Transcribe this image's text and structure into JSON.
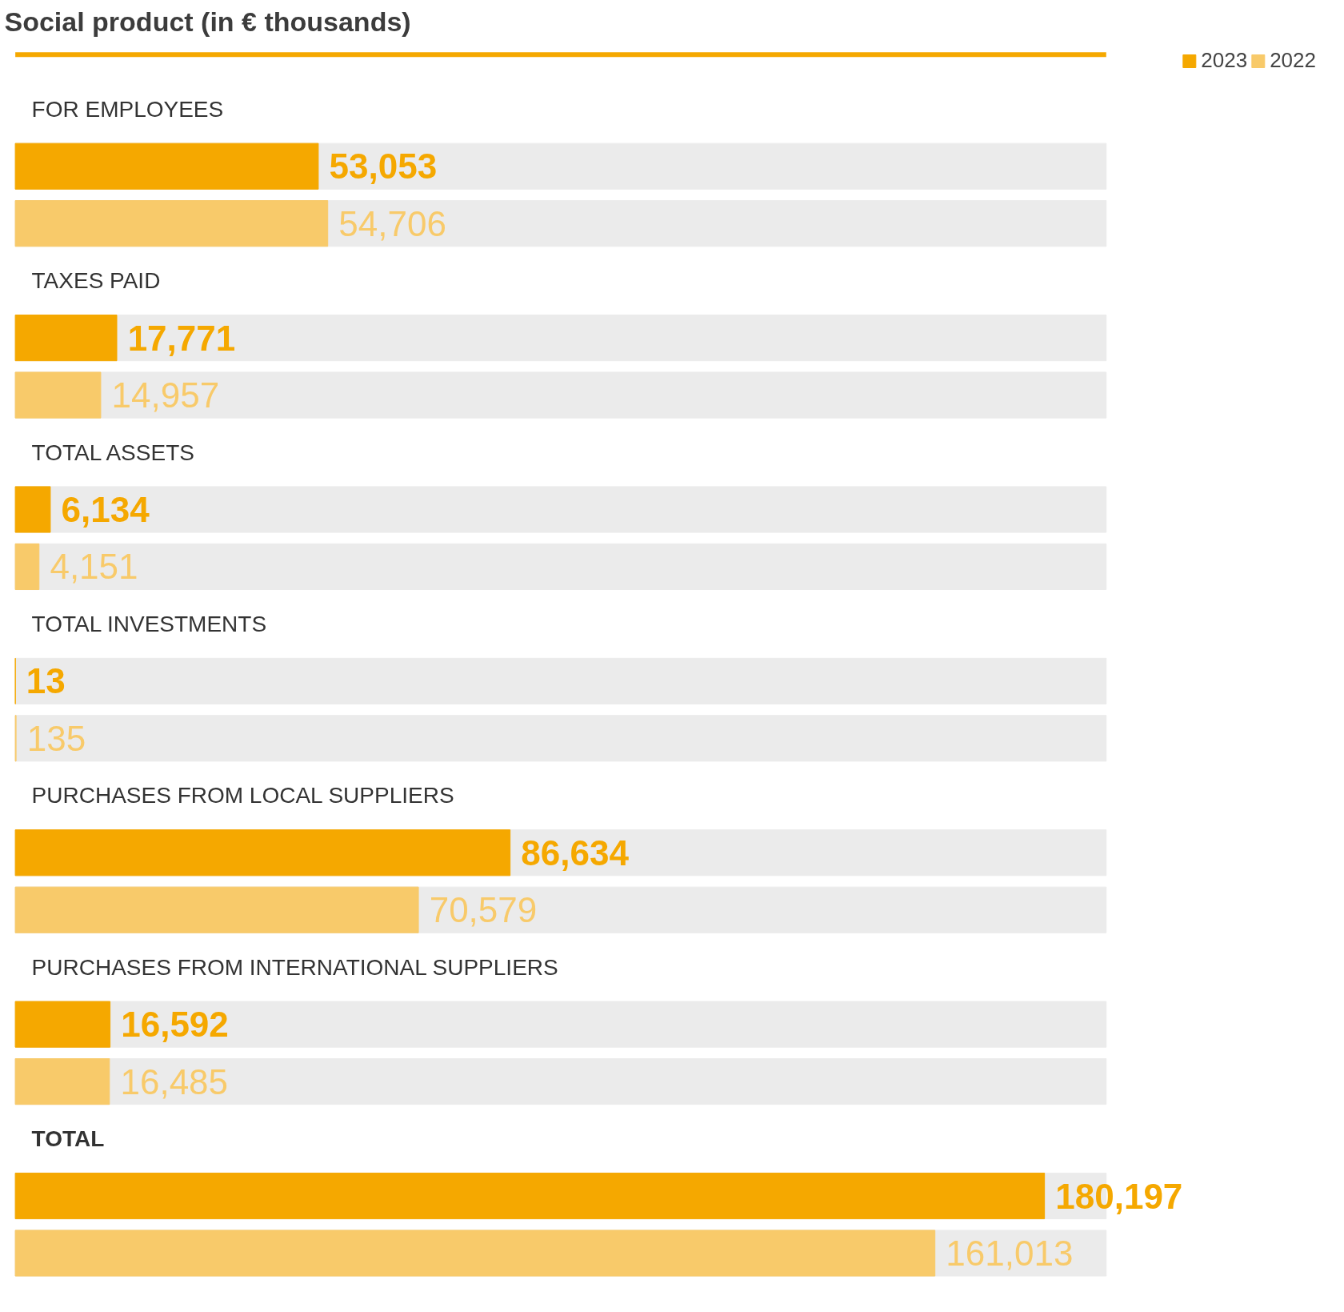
{
  "chart_data": {
    "type": "bar",
    "orientation": "horizontal",
    "title": "Social product (in € thousands)",
    "categories": [
      "FOR EMPLOYEES",
      "TAXES PAID",
      "TOTAL ASSETS",
      "TOTAL INVESTMENTS",
      "PURCHASES FROM LOCAL SUPPLIERS",
      "PURCHASES FROM INTERNATIONAL SUPPLIERS",
      "TOTAL"
    ],
    "series": [
      {
        "name": "2023",
        "color": "#f5a800",
        "values": [
          53053,
          17771,
          6134,
          13,
          86634,
          16592,
          180197
        ],
        "value_labels": [
          "53,053",
          "17,771",
          "6,134",
          "13",
          "86,634",
          "16,592",
          "180,197"
        ]
      },
      {
        "name": "2022",
        "color": "#f8ca6a",
        "values": [
          54706,
          14957,
          4151,
          135,
          70579,
          16485,
          161013
        ],
        "value_labels": [
          "54,706",
          "14,957",
          "4,151",
          "135",
          "70,579",
          "16,485",
          "161,013"
        ]
      }
    ],
    "xlim": [
      0,
      191000
    ],
    "legend": "top right",
    "tick_labels": false,
    "grid": false
  }
}
